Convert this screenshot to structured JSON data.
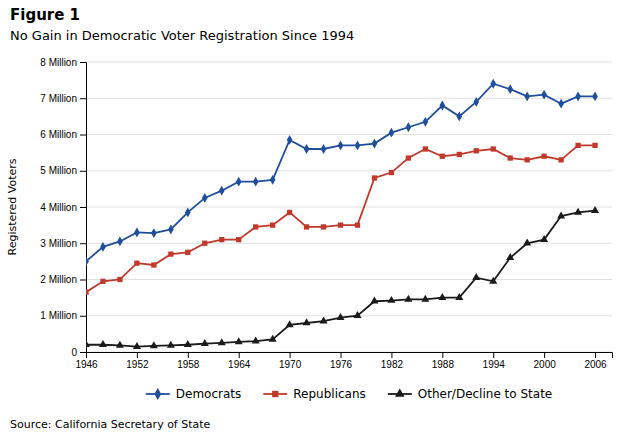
{
  "chart_data": {
    "type": "line",
    "title": "Figure 1",
    "subtitle": "No Gain in Democratic Voter Registration Since 1994",
    "source": "Source: California Secretary of State",
    "ylabel": "Registered Voters",
    "x": [
      1946,
      1948,
      1950,
      1952,
      1954,
      1956,
      1958,
      1960,
      1962,
      1964,
      1966,
      1968,
      1970,
      1972,
      1974,
      1976,
      1978,
      1980,
      1982,
      1984,
      1986,
      1988,
      1990,
      1992,
      1994,
      1996,
      1998,
      2000,
      2002,
      2004,
      2006
    ],
    "xlim": [
      1946,
      2008
    ],
    "xticks": [
      1946,
      1952,
      1958,
      1964,
      1970,
      1976,
      1982,
      1988,
      1994,
      2000,
      2006
    ],
    "ylim": [
      0,
      8000000
    ],
    "yticks": [
      0,
      {
        "value": 1000000,
        "label": "1 Million"
      },
      {
        "value": 2000000,
        "label": "2 Million"
      },
      {
        "value": 3000000,
        "label": "3 Million"
      },
      {
        "value": 4000000,
        "label": "4 Million"
      },
      {
        "value": 5000000,
        "label": "5 Million"
      },
      {
        "value": 6000000,
        "label": "6 Million"
      },
      {
        "value": 7000000,
        "label": "7 Million"
      },
      {
        "value": 8000000,
        "label": "8 Million"
      }
    ],
    "grid": true,
    "legend": "bottom",
    "series": [
      {
        "name": "Democrats",
        "color": "#1f4e9c",
        "marker": "diamond",
        "values": [
          2500000,
          2900000,
          3050000,
          3300000,
          3280000,
          3380000,
          3850000,
          4250000,
          4450000,
          4700000,
          4700000,
          4750000,
          5850000,
          5600000,
          5600000,
          5700000,
          5700000,
          5750000,
          6050000,
          6200000,
          6350000,
          6800000,
          6500000,
          6900000,
          7400000,
          7250000,
          7050000,
          7100000,
          6850000,
          7050000,
          7050000
        ]
      },
      {
        "name": "Republicans",
        "color": "#c0392b",
        "marker": "square",
        "values": [
          1650000,
          1950000,
          2000000,
          2450000,
          2400000,
          2700000,
          2750000,
          3000000,
          3100000,
          3100000,
          3450000,
          3500000,
          3850000,
          3450000,
          3450000,
          3500000,
          3500000,
          4800000,
          4950000,
          5350000,
          5600000,
          5400000,
          5450000,
          5550000,
          5600000,
          5350000,
          5300000,
          5400000,
          5300000,
          5700000,
          5700000
        ]
      },
      {
        "name": "Other/Decline to State",
        "color": "#1a1a1a",
        "marker": "triangle",
        "values": [
          200000,
          200000,
          180000,
          150000,
          170000,
          180000,
          200000,
          230000,
          250000,
          280000,
          300000,
          350000,
          750000,
          800000,
          850000,
          950000,
          1000000,
          1400000,
          1420000,
          1450000,
          1450000,
          1500000,
          1500000,
          2050000,
          1950000,
          2600000,
          3000000,
          3100000,
          3750000,
          3850000,
          3900000
        ]
      }
    ]
  }
}
